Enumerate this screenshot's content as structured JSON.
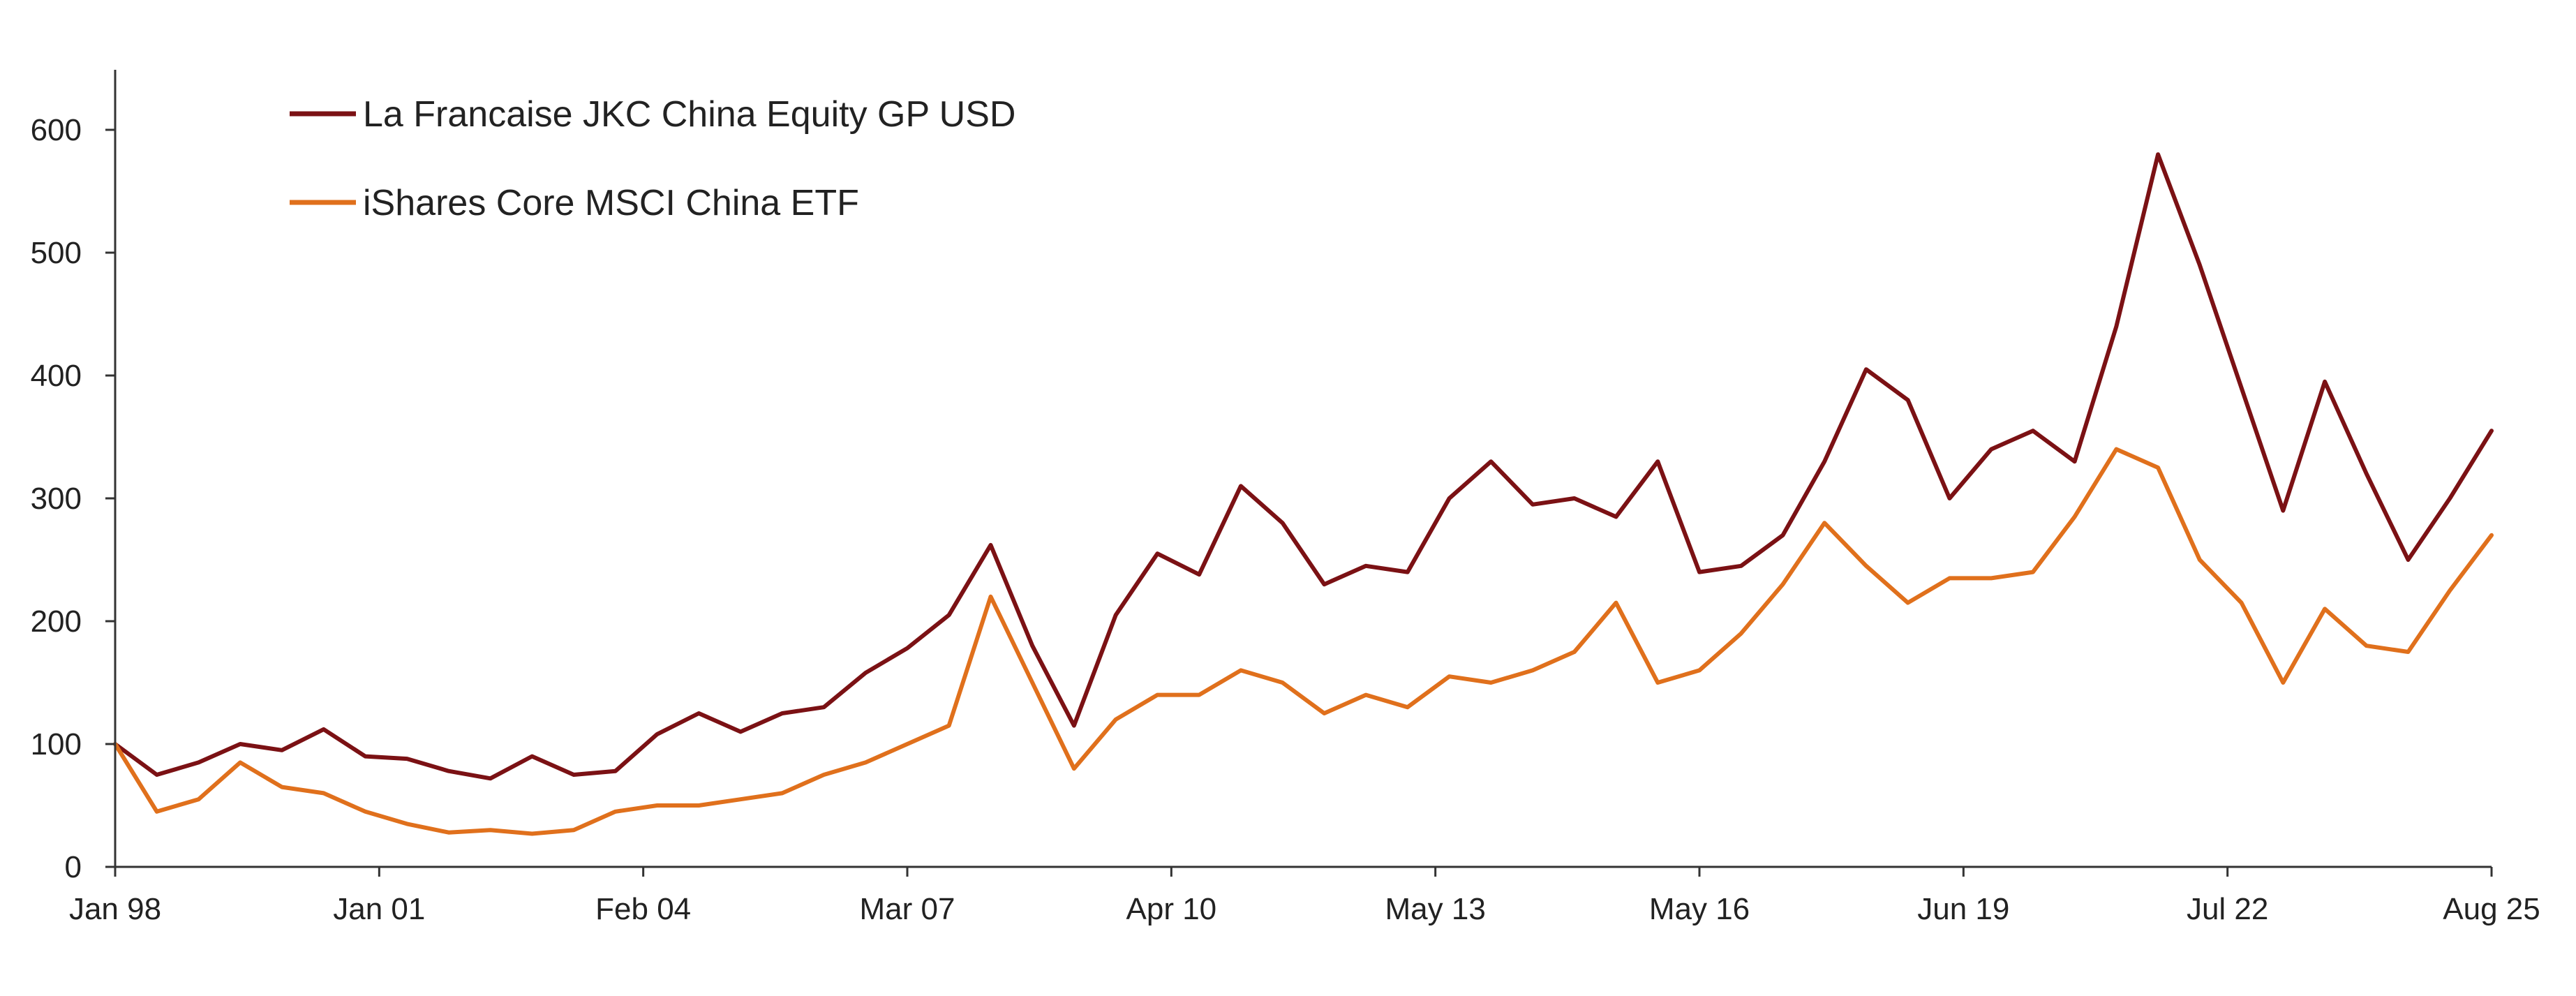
{
  "chart_data": {
    "type": "line",
    "title": "",
    "xlabel": "",
    "ylabel": "",
    "ylim": [
      0,
      650
    ],
    "yticks": [
      0,
      100,
      200,
      300,
      400,
      500,
      600
    ],
    "xticks": [
      "Jan 98",
      "Jan 01",
      "Feb 04",
      "Mar 07",
      "Apr 10",
      "May 13",
      "May 16",
      "Jun 19",
      "Jul 22",
      "Aug 25"
    ],
    "grid": false,
    "legend": "top-left",
    "x": [
      "Jan 98",
      "Jul 98",
      "Jan 99",
      "Jul 99",
      "Jan 00",
      "Jul 00",
      "Jan 01",
      "Jul 01",
      "Jan 02",
      "Jul 02",
      "Jan 03",
      "Jul 03",
      "Jan 04",
      "Jul 04",
      "Jan 05",
      "Jul 05",
      "Jan 06",
      "Jul 06",
      "Jan 07",
      "Jul 07",
      "Oct 07",
      "Jan 08",
      "Jul 08",
      "Jan 09",
      "Jul 09",
      "Jan 10",
      "Jul 10",
      "Jan 11",
      "Jul 11",
      "Jan 12",
      "Jul 12",
      "Jan 13",
      "Jul 13",
      "Jan 14",
      "Jul 14",
      "Jan 15",
      "Jun 15",
      "Jan 16",
      "Jul 16",
      "Jan 17",
      "Jul 17",
      "Jan 18",
      "Jul 18",
      "Jan 19",
      "Jul 19",
      "Jan 20",
      "Jul 20",
      "Jan 21",
      "Feb 21",
      "Jul 21",
      "Jan 22",
      "Oct 22",
      "Jan 23",
      "Jul 23",
      "Jan 24",
      "Jul 24",
      "Jan 25",
      "Aug 25"
    ],
    "series": [
      {
        "name": "La Francaise JKC China Equity GP USD",
        "color": "#7b1114",
        "values": [
          100,
          75,
          85,
          100,
          95,
          112,
          90,
          88,
          78,
          72,
          90,
          75,
          78,
          108,
          125,
          110,
          125,
          130,
          158,
          178,
          205,
          262,
          180,
          115,
          205,
          255,
          238,
          310,
          280,
          230,
          245,
          240,
          300,
          330,
          295,
          300,
          285,
          330,
          240,
          245,
          270,
          330,
          405,
          380,
          300,
          340,
          355,
          330,
          440,
          580,
          490,
          390,
          290,
          395,
          320,
          250,
          300,
          355
        ]
      },
      {
        "name": "iShares Core MSCI China ETF",
        "color": "#e0701c",
        "values": [
          100,
          45,
          55,
          85,
          65,
          60,
          45,
          35,
          28,
          30,
          27,
          30,
          45,
          50,
          50,
          55,
          60,
          75,
          85,
          100,
          115,
          220,
          150,
          80,
          120,
          140,
          140,
          160,
          150,
          125,
          140,
          130,
          155,
          150,
          160,
          175,
          215,
          150,
          160,
          190,
          230,
          280,
          245,
          215,
          235,
          235,
          240,
          285,
          340,
          325,
          250,
          215,
          150,
          210,
          180,
          175,
          225,
          270
        ]
      }
    ]
  }
}
